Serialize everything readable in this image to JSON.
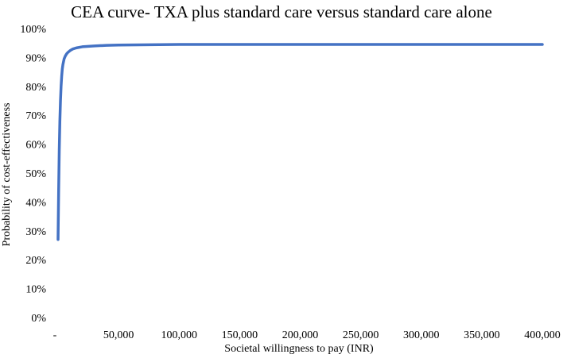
{
  "chart_data": {
    "type": "line",
    "title": "CEA curve- TXA plus standard care versus standard care alone",
    "xlabel": "Societal willingness to pay (INR)",
    "ylabel": "Probability of cost-effectiveness",
    "xlim": [
      0,
      400000
    ],
    "ylim": [
      0,
      100
    ],
    "x_tick_labels": [
      "-",
      "50,000",
      "100,000",
      "150,000",
      "200,000",
      "250,000",
      "300,000",
      "350,000",
      "400,000"
    ],
    "y_tick_labels": [
      "0%",
      "10%",
      "20%",
      "30%",
      "40%",
      "50%",
      "60%",
      "70%",
      "80%",
      "90%",
      "100%"
    ],
    "grid": false,
    "legend": "none",
    "line_color": "#4472C4",
    "series": [
      {
        "x": [
          0,
          500,
          1000,
          1500,
          2000,
          2500,
          3000,
          3500,
          4000,
          5000,
          6000,
          7000,
          8000,
          10000,
          12000,
          15000,
          20000,
          30000,
          40000,
          50000,
          75000,
          100000,
          150000,
          200000,
          250000,
          300000,
          350000,
          400000
        ],
        "values": [
          27,
          44,
          58,
          68,
          75,
          80,
          83.5,
          86,
          87.5,
          89.5,
          90.5,
          91.2,
          91.7,
          92.4,
          92.9,
          93.3,
          93.7,
          94.0,
          94.2,
          94.3,
          94.4,
          94.5,
          94.5,
          94.5,
          94.5,
          94.5,
          94.5,
          94.5
        ]
      }
    ]
  }
}
